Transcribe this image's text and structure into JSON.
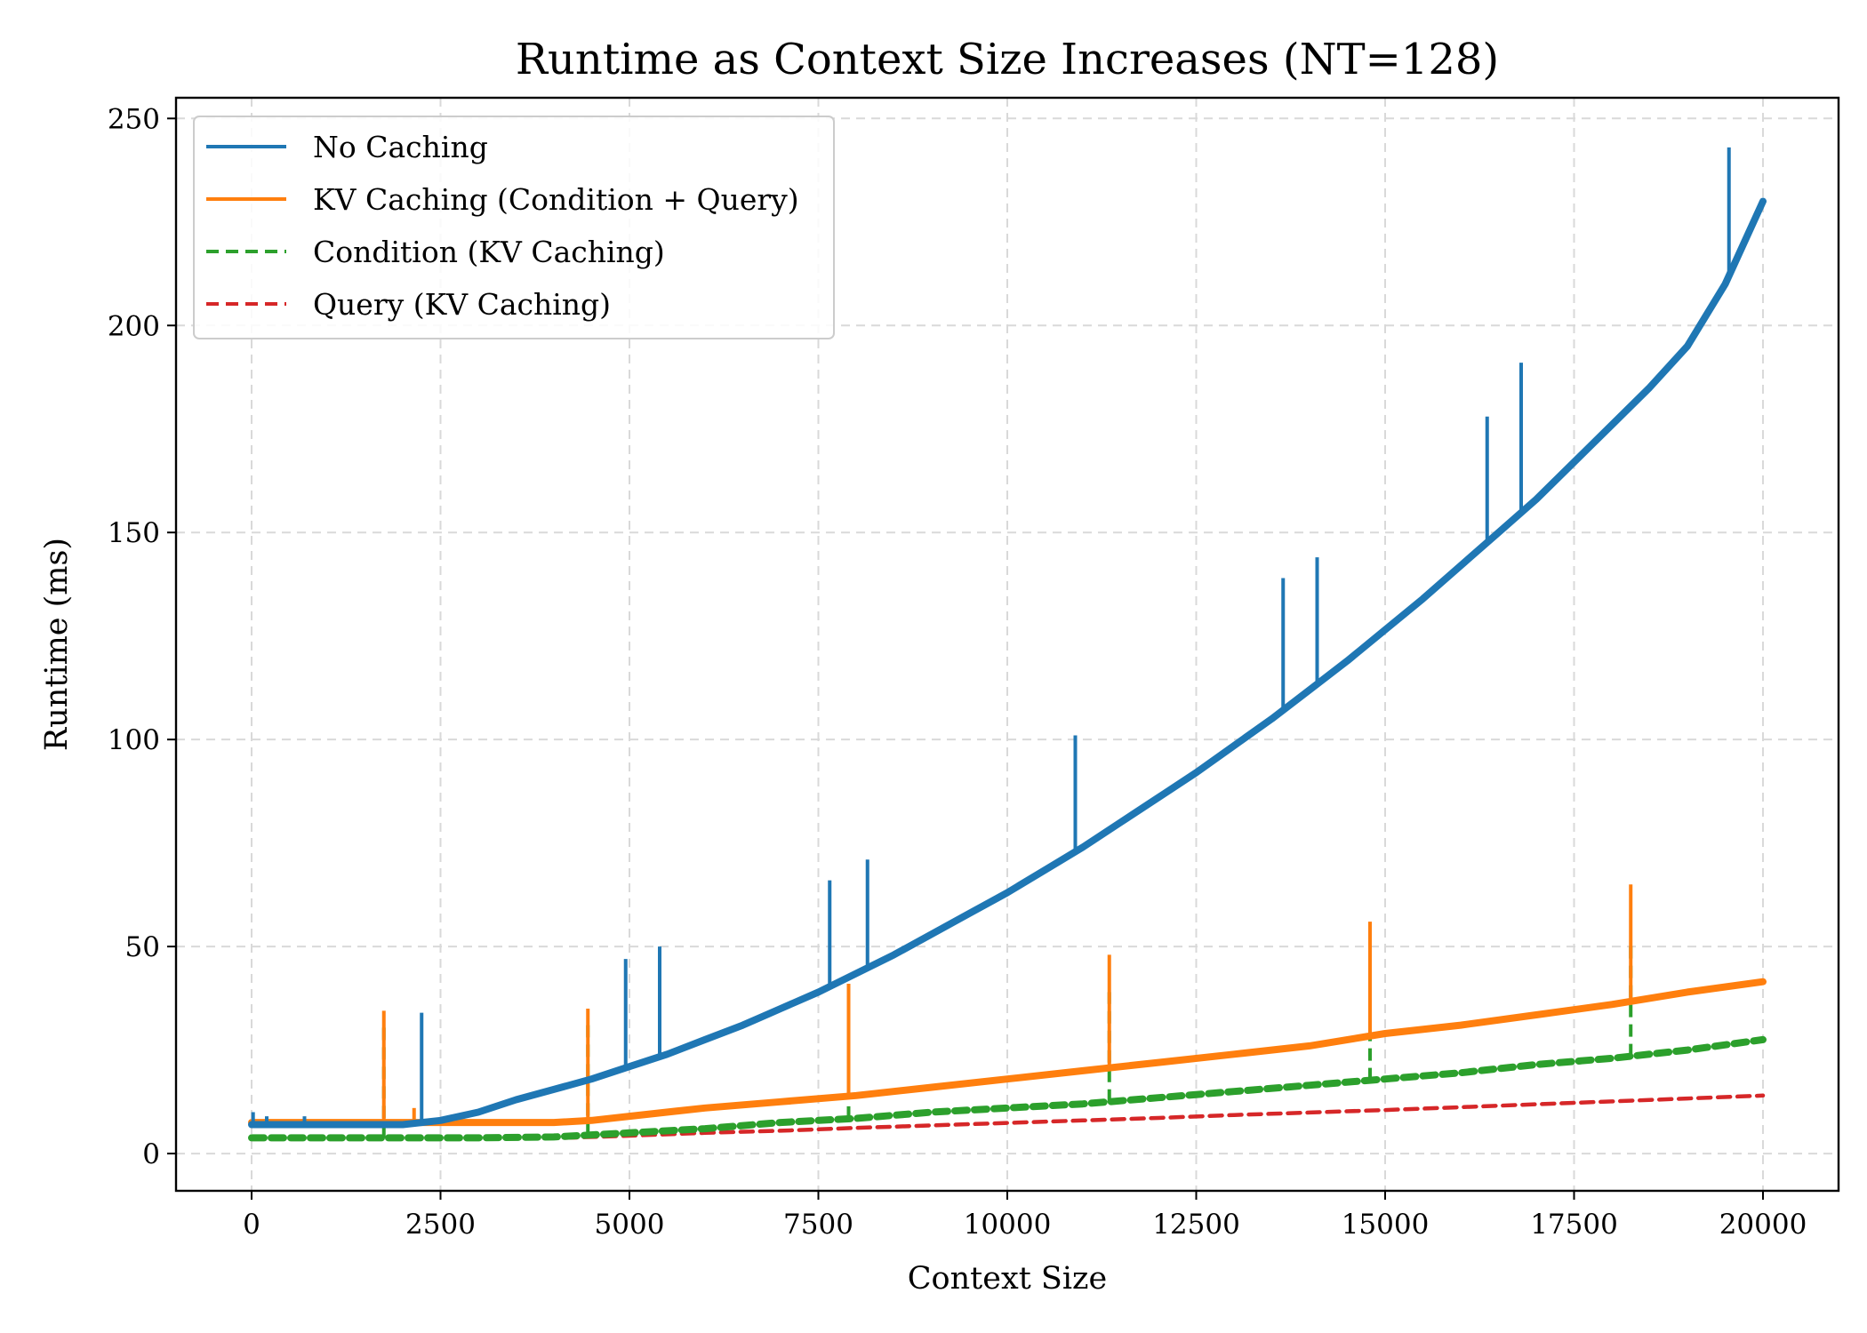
{
  "chart_data": {
    "type": "line",
    "title": "Runtime as Context Size Increases (NT=128)",
    "xlabel": "Context Size",
    "ylabel": "Runtime (ms)",
    "xlim": [
      -1000,
      21000
    ],
    "ylim": [
      -9,
      255
    ],
    "xticks": [
      0,
      2500,
      5000,
      7500,
      10000,
      12500,
      15000,
      17500,
      20000
    ],
    "yticks": [
      0,
      50,
      100,
      150,
      200,
      250
    ],
    "grid": true,
    "legend_position": "top-left",
    "series": [
      {
        "name": "No Caching",
        "color": "#1f77b4",
        "dash": "solid",
        "x": [
          0,
          1000,
          2000,
          2500,
          3000,
          3500,
          4000,
          4500,
          5000,
          5500,
          6000,
          6500,
          7000,
          7500,
          8000,
          8500,
          9000,
          9500,
          10000,
          10500,
          11000,
          11500,
          12000,
          12500,
          13000,
          13500,
          14000,
          14500,
          15000,
          15500,
          16000,
          16500,
          17000,
          17500,
          18000,
          18500,
          19000,
          19500,
          20000
        ],
        "values": [
          7,
          7,
          7,
          8,
          10,
          13,
          15.5,
          18,
          21,
          24,
          27.5,
          31,
          35,
          39,
          43.5,
          48,
          53,
          58,
          63,
          68.5,
          74,
          80,
          86,
          92,
          98.5,
          105,
          112,
          119,
          126.5,
          134,
          142,
          150,
          158,
          167,
          176,
          185,
          195,
          210,
          230
        ],
        "spikes": [
          {
            "x": 20,
            "y": 10
          },
          {
            "x": 200,
            "y": 9
          },
          {
            "x": 700,
            "y": 9
          },
          {
            "x": 2250,
            "y": 34
          },
          {
            "x": 4950,
            "y": 47
          },
          {
            "x": 5400,
            "y": 50
          },
          {
            "x": 7650,
            "y": 66
          },
          {
            "x": 8150,
            "y": 71
          },
          {
            "x": 10900,
            "y": 101
          },
          {
            "x": 13650,
            "y": 139
          },
          {
            "x": 14100,
            "y": 144
          },
          {
            "x": 16350,
            "y": 178
          },
          {
            "x": 16800,
            "y": 191
          },
          {
            "x": 19550,
            "y": 243
          }
        ]
      },
      {
        "name": "KV Caching (Condition + Query)",
        "color": "#ff7f0e",
        "dash": "solid",
        "x": [
          0,
          1000,
          2000,
          3000,
          4000,
          4500,
          5000,
          6000,
          7000,
          8000,
          9000,
          10000,
          11000,
          12000,
          13000,
          14000,
          15000,
          16000,
          17000,
          18000,
          19000,
          20000
        ],
        "values": [
          7.5,
          7.5,
          7.5,
          7.5,
          7.5,
          8,
          9,
          11,
          12.5,
          14,
          16,
          18,
          20,
          22,
          24,
          26,
          29,
          31,
          33.5,
          36,
          39,
          41.5
        ],
        "spikes": [
          {
            "x": 1750,
            "y": 34.5
          },
          {
            "x": 2150,
            "y": 11
          },
          {
            "x": 4450,
            "y": 35
          },
          {
            "x": 7900,
            "y": 41
          },
          {
            "x": 11350,
            "y": 48
          },
          {
            "x": 14800,
            "y": 56
          },
          {
            "x": 18250,
            "y": 65
          }
        ]
      },
      {
        "name": "Condition (KV Caching)",
        "color": "#2ca02c",
        "dash": "dashed",
        "x": [
          0,
          1000,
          2000,
          3000,
          4000,
          5000,
          6000,
          7000,
          8000,
          9000,
          10000,
          11000,
          12000,
          13000,
          14000,
          15000,
          16000,
          17000,
          18000,
          19000,
          20000
        ],
        "values": [
          3.8,
          3.8,
          3.8,
          3.8,
          4,
          5,
          6,
          7.5,
          8.5,
          10,
          11,
          12,
          13.5,
          15,
          16.5,
          18,
          19.5,
          21.5,
          23,
          25,
          27.5
        ],
        "spikes": [
          {
            "x": 1750,
            "y": 31
          },
          {
            "x": 4450,
            "y": 31
          },
          {
            "x": 7900,
            "y": 35
          },
          {
            "x": 11350,
            "y": 39
          },
          {
            "x": 14800,
            "y": 46
          },
          {
            "x": 18250,
            "y": 51
          }
        ]
      },
      {
        "name": "Query (KV Caching)",
        "color": "#d62728",
        "dash": "dashed",
        "x": [
          0,
          1000,
          2000,
          3000,
          4000,
          5000,
          6000,
          7000,
          8000,
          9000,
          10000,
          11000,
          12000,
          13000,
          14000,
          15000,
          16000,
          17000,
          18000,
          19000,
          20000
        ],
        "values": [
          3.5,
          3.5,
          3.5,
          3.5,
          3.7,
          4.3,
          5,
          5.5,
          6.2,
          6.8,
          7.4,
          8,
          8.6,
          9.3,
          9.9,
          10.5,
          11.2,
          11.9,
          12.6,
          13.3,
          14
        ],
        "spikes": []
      }
    ]
  }
}
